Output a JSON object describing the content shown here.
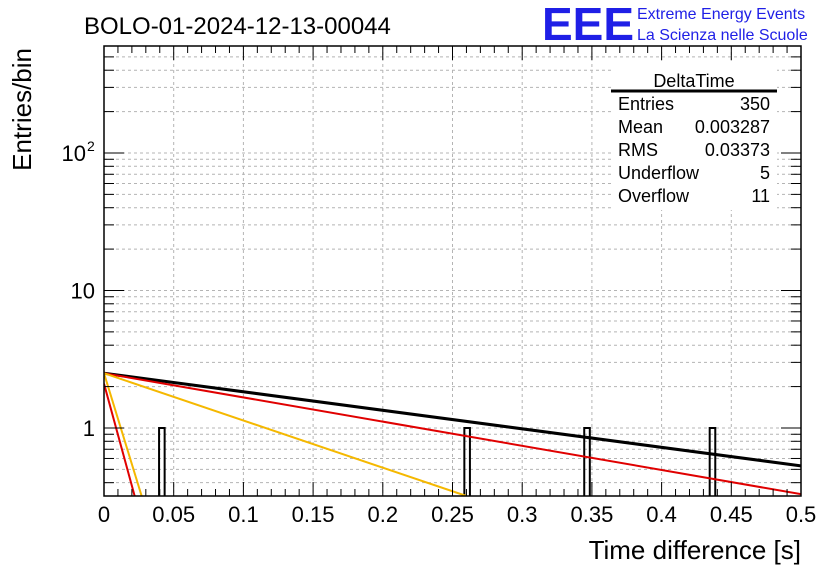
{
  "header": {
    "run_title": "BOLO-01-2024-12-13-00044",
    "logo_text": "EEE",
    "org_line1": "Extreme Energy Events",
    "org_line2": "La Scienza nelle Scuole"
  },
  "stats_box": {
    "title": "DeltaTime",
    "rows": [
      {
        "label": "Entries",
        "value": "350"
      },
      {
        "label": "Mean",
        "value": "0.003287"
      },
      {
        "label": "RMS",
        "value": "0.03373"
      },
      {
        "label": "Underflow",
        "value": "5"
      },
      {
        "label": "Overflow",
        "value": "11"
      }
    ]
  },
  "chart_data": {
    "type": "line",
    "xlabel": "Time difference [s]",
    "ylabel": "Entries/bin",
    "x_scale": "linear",
    "y_scale": "log",
    "xlim": [
      0,
      0.5
    ],
    "ylim": [
      0.32,
      600
    ],
    "x_ticks": [
      "0",
      "0.05",
      "0.1",
      "0.15",
      "0.2",
      "0.25",
      "0.3",
      "0.35",
      "0.4",
      "0.45",
      "0.5"
    ],
    "y_ticks": [
      {
        "value": 1,
        "label": "1"
      },
      {
        "value": 10,
        "label": "10"
      },
      {
        "value": 100,
        "label": "10",
        "exponent": "2"
      }
    ],
    "grid": true,
    "histogram": {
      "color": "#000000",
      "bins": [
        {
          "x0": 0.0395,
          "x1": 0.0435,
          "count": 1
        },
        {
          "x0": 0.2585,
          "x1": 0.2625,
          "count": 1
        },
        {
          "x0": 0.3445,
          "x1": 0.3485,
          "count": 1
        },
        {
          "x0": 0.4345,
          "x1": 0.4385,
          "count": 1
        }
      ]
    },
    "series": [
      {
        "color": "#000000",
        "x": [
          0,
          0.5
        ],
        "y": [
          2.5,
          0.53
        ]
      },
      {
        "color": "#e00000",
        "x": [
          0,
          0.5
        ],
        "y": [
          2.5,
          0.33
        ]
      },
      {
        "color": "#f5b800",
        "x": [
          0,
          0.26
        ],
        "y": [
          2.5,
          0.32
        ]
      },
      {
        "color": "#e00000",
        "x": [
          0,
          0.022
        ],
        "y": [
          2.1,
          0.32
        ]
      },
      {
        "color": "#f5b800",
        "x": [
          0,
          0.027
        ],
        "y": [
          2.5,
          0.32
        ]
      }
    ]
  }
}
